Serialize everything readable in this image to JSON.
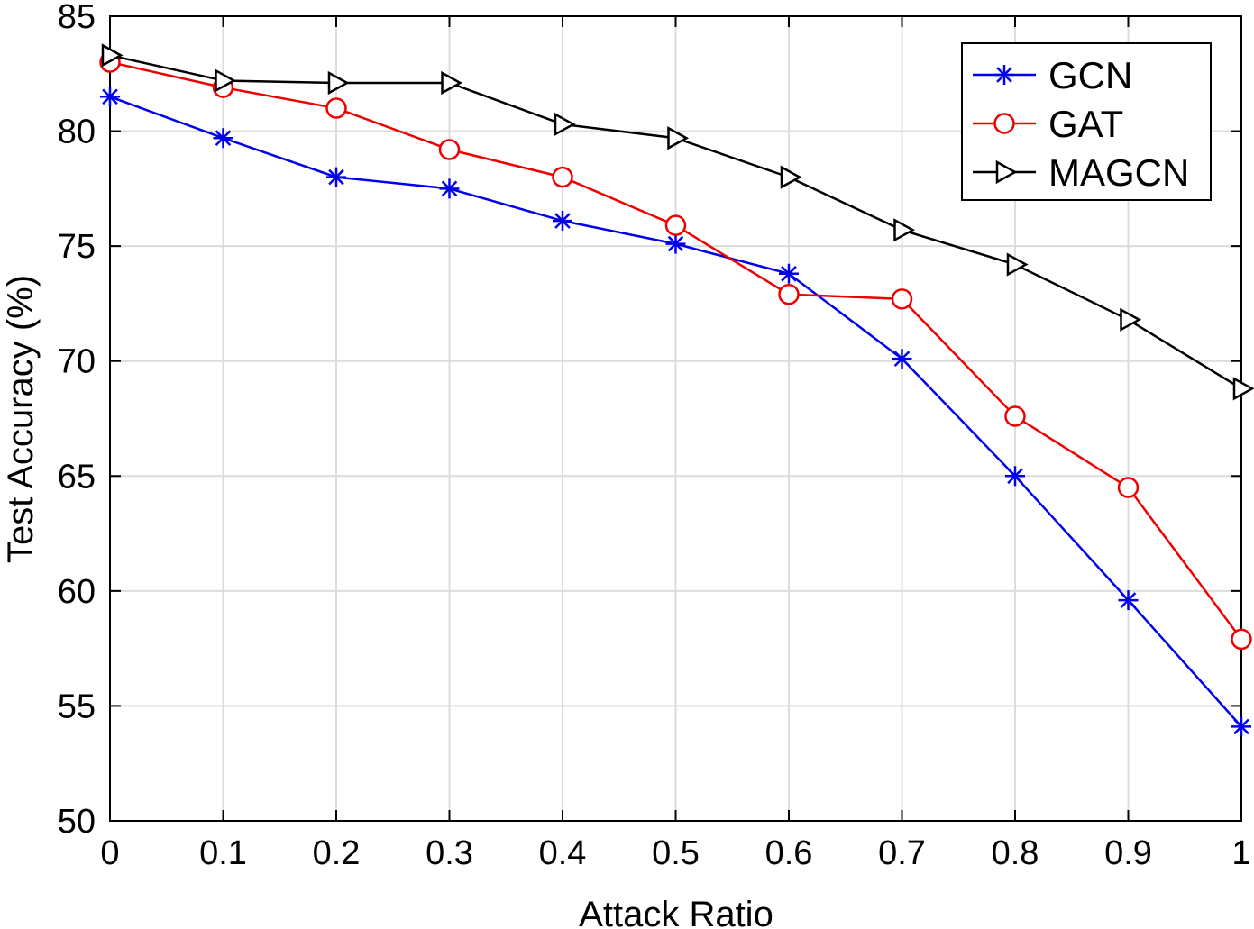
{
  "chart_data": {
    "type": "line",
    "title": "",
    "xlabel": "Attack Ratio",
    "ylabel": "Test Accuracy (%)",
    "x": [
      0,
      0.1,
      0.2,
      0.3,
      0.4,
      0.5,
      0.6,
      0.7,
      0.8,
      0.9,
      1
    ],
    "x_tick_labels": [
      "0",
      "0.1",
      "0.2",
      "0.3",
      "0.4",
      "0.5",
      "0.6",
      "0.7",
      "0.8",
      "0.9",
      "1"
    ],
    "y_ticks": [
      50,
      55,
      60,
      65,
      70,
      75,
      80,
      85
    ],
    "y_tick_labels": [
      "50",
      "55",
      "60",
      "65",
      "70",
      "75",
      "80",
      "85"
    ],
    "xlim": [
      0,
      1
    ],
    "ylim": [
      50,
      85
    ],
    "grid": true,
    "legend_position": "top-right",
    "series": [
      {
        "name": "GCN",
        "color": "#0000ee",
        "marker": "asterisk",
        "values": [
          81.5,
          79.7,
          78.0,
          77.5,
          76.1,
          75.1,
          73.8,
          70.1,
          65.0,
          59.6,
          54.1
        ]
      },
      {
        "name": "GAT",
        "color": "#ee0000",
        "marker": "circle",
        "values": [
          83.0,
          81.9,
          81.0,
          79.2,
          78.0,
          75.9,
          72.9,
          72.7,
          67.6,
          64.5,
          57.9
        ]
      },
      {
        "name": "MAGCN",
        "color": "#000000",
        "marker": "triangle-right",
        "values": [
          83.3,
          82.2,
          82.1,
          82.1,
          80.3,
          79.7,
          78.0,
          75.7,
          74.2,
          71.8,
          68.8
        ]
      }
    ]
  }
}
